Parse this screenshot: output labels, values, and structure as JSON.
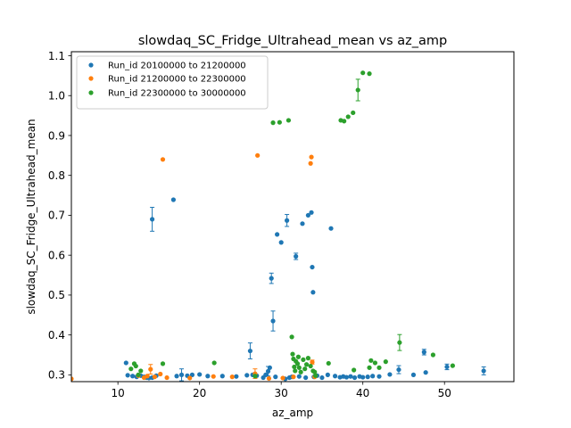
{
  "chart_data": {
    "type": "scatter",
    "title": "slowdaq_SC_Fridge_Ultrahead_mean vs az_amp",
    "xlabel": "az_amp",
    "ylabel": "slowdaq_SC_Fridge_Ultrahead_mean",
    "xlim": [
      4.3,
      58.5
    ],
    "ylim": [
      0.283,
      1.11
    ],
    "xticks": [
      10,
      20,
      30,
      40,
      50
    ],
    "yticks": [
      0.3,
      0.4,
      0.5,
      0.6,
      0.7,
      0.8,
      0.9,
      1.0,
      1.1
    ],
    "xtick_labels": [
      "10",
      "20",
      "30",
      "40",
      "50"
    ],
    "ytick_labels": [
      "0.3",
      "0.4",
      "0.5",
      "0.6",
      "0.7",
      "0.8",
      "0.9",
      "1.0",
      "1.1"
    ],
    "grid": false,
    "legend_position": "top-left",
    "series": [
      {
        "name": "Run_id 20100000 to 21200000",
        "color": "#1f77b4",
        "points": [
          [
            11.0,
            0.33,
            0
          ],
          [
            11.2,
            0.299,
            0
          ],
          [
            11.8,
            0.297,
            0
          ],
          [
            12.3,
            0.295,
            0
          ],
          [
            12.8,
            0.298,
            0
          ],
          [
            13.2,
            0.295,
            0
          ],
          [
            13.5,
            0.293,
            0
          ],
          [
            13.8,
            0.292,
            0
          ],
          [
            14.2,
            0.293,
            0
          ],
          [
            14.7,
            0.298,
            0
          ],
          [
            14.2,
            0.69,
            0.03
          ],
          [
            16.8,
            0.739,
            0
          ],
          [
            17.2,
            0.297,
            0
          ],
          [
            17.8,
            0.3,
            0.015
          ],
          [
            18.5,
            0.298,
            0
          ],
          [
            19.1,
            0.3,
            0
          ],
          [
            20.0,
            0.301,
            0
          ],
          [
            21.0,
            0.297,
            0
          ],
          [
            22.8,
            0.297,
            0
          ],
          [
            24.5,
            0.296,
            0
          ],
          [
            25.8,
            0.299,
            0
          ],
          [
            26.2,
            0.36,
            0.02
          ],
          [
            26.5,
            0.3,
            0
          ],
          [
            27.0,
            0.298,
            0
          ],
          [
            27.8,
            0.293,
            0
          ],
          [
            28.1,
            0.3,
            0
          ],
          [
            28.4,
            0.309,
            0.012
          ],
          [
            28.6,
            0.318,
            0
          ],
          [
            28.8,
            0.542,
            0.013
          ],
          [
            29.0,
            0.435,
            0.025
          ],
          [
            29.3,
            0.295,
            0
          ],
          [
            29.5,
            0.652,
            0
          ],
          [
            30.0,
            0.632,
            0
          ],
          [
            30.5,
            0.29,
            0
          ],
          [
            30.7,
            0.687,
            0.015
          ],
          [
            31.0,
            0.293,
            0
          ],
          [
            31.3,
            0.295,
            0
          ],
          [
            31.8,
            0.597,
            0.008
          ],
          [
            32.2,
            0.296,
            0
          ],
          [
            32.6,
            0.679,
            0
          ],
          [
            33.0,
            0.293,
            0
          ],
          [
            33.3,
            0.7,
            0
          ],
          [
            33.7,
            0.707,
            0
          ],
          [
            33.8,
            0.57,
            0
          ],
          [
            33.9,
            0.507,
            0
          ],
          [
            34.0,
            0.295,
            0
          ],
          [
            34.4,
            0.298,
            0
          ],
          [
            35.0,
            0.293,
            0
          ],
          [
            35.7,
            0.3,
            0
          ],
          [
            36.1,
            0.667,
            0
          ],
          [
            36.6,
            0.297,
            0
          ],
          [
            37.2,
            0.294,
            0
          ],
          [
            37.6,
            0.296,
            0
          ],
          [
            38.0,
            0.294,
            0
          ],
          [
            38.5,
            0.296,
            0
          ],
          [
            39.0,
            0.293,
            0
          ],
          [
            39.6,
            0.296,
            0
          ],
          [
            40.0,
            0.294,
            0
          ],
          [
            40.6,
            0.295,
            0
          ],
          [
            41.2,
            0.297,
            0
          ],
          [
            42.0,
            0.296,
            0
          ],
          [
            43.3,
            0.301,
            0
          ],
          [
            44.4,
            0.313,
            0.01
          ],
          [
            46.2,
            0.3,
            0
          ],
          [
            47.5,
            0.357,
            0.007
          ],
          [
            47.7,
            0.306,
            0
          ],
          [
            50.3,
            0.32,
            0.007
          ],
          [
            54.8,
            0.31,
            0.01
          ]
        ]
      },
      {
        "name": "Run_id 21200000 to 22300000",
        "color": "#ff7f0e",
        "points": [
          [
            4.3,
            0.29,
            0
          ],
          [
            12.5,
            0.298,
            0
          ],
          [
            13.2,
            0.293,
            0
          ],
          [
            13.6,
            0.297,
            0
          ],
          [
            14.0,
            0.314,
            0.012
          ],
          [
            14.5,
            0.295,
            0
          ],
          [
            15.2,
            0.302,
            0
          ],
          [
            15.5,
            0.84,
            0
          ],
          [
            16.0,
            0.293,
            0
          ],
          [
            18.8,
            0.292,
            0
          ],
          [
            21.7,
            0.296,
            0
          ],
          [
            24.0,
            0.295,
            0
          ],
          [
            26.8,
            0.303,
            0.012
          ],
          [
            27.1,
            0.85,
            0
          ],
          [
            28.5,
            0.291,
            0
          ],
          [
            30.2,
            0.292,
            0
          ],
          [
            31.5,
            0.295,
            0
          ],
          [
            33.6,
            0.83,
            0
          ],
          [
            33.7,
            0.846,
            0
          ],
          [
            33.8,
            0.332,
            0.005
          ],
          [
            34.1,
            0.295,
            0
          ]
        ]
      },
      {
        "name": "Run_id 22300000 to 30000000",
        "color": "#2ca02c",
        "points": [
          [
            11.6,
            0.315,
            0
          ],
          [
            12.0,
            0.328,
            0
          ],
          [
            12.2,
            0.322,
            0
          ],
          [
            12.5,
            0.3,
            0
          ],
          [
            12.8,
            0.31,
            0
          ],
          [
            15.5,
            0.328,
            0
          ],
          [
            21.8,
            0.33,
            0
          ],
          [
            26.8,
            0.297,
            0
          ],
          [
            29.0,
            0.932,
            0
          ],
          [
            29.8,
            0.933,
            0
          ],
          [
            30.9,
            0.938,
            0
          ],
          [
            31.3,
            0.395,
            0
          ],
          [
            31.4,
            0.352,
            0
          ],
          [
            31.5,
            0.34,
            0
          ],
          [
            31.6,
            0.32,
            0
          ],
          [
            31.7,
            0.31,
            0
          ],
          [
            31.8,
            0.334,
            0
          ],
          [
            32.0,
            0.328,
            0
          ],
          [
            32.1,
            0.345,
            0
          ],
          [
            32.2,
            0.318,
            0
          ],
          [
            32.4,
            0.307,
            0
          ],
          [
            32.7,
            0.338,
            0
          ],
          [
            32.9,
            0.315,
            0
          ],
          [
            33.1,
            0.326,
            0
          ],
          [
            33.3,
            0.342,
            0
          ],
          [
            33.6,
            0.322,
            0
          ],
          [
            33.9,
            0.31,
            0
          ],
          [
            34.1,
            0.307,
            0
          ],
          [
            34.2,
            0.298,
            0
          ],
          [
            35.8,
            0.329,
            0
          ],
          [
            37.3,
            0.938,
            0
          ],
          [
            37.7,
            0.936,
            0
          ],
          [
            38.2,
            0.947,
            0
          ],
          [
            38.8,
            0.957,
            0
          ],
          [
            39.4,
            1.014,
            0.027
          ],
          [
            40.0,
            1.057,
            0
          ],
          [
            40.8,
            1.055,
            0
          ],
          [
            38.9,
            0.312,
            0
          ],
          [
            40.8,
            0.318,
            0
          ],
          [
            41.0,
            0.336,
            0
          ],
          [
            41.5,
            0.33,
            0
          ],
          [
            42.0,
            0.318,
            0
          ],
          [
            42.8,
            0.333,
            0
          ],
          [
            44.5,
            0.381,
            0.02
          ],
          [
            48.6,
            0.35,
            0
          ],
          [
            51.0,
            0.323,
            0
          ]
        ]
      }
    ]
  }
}
